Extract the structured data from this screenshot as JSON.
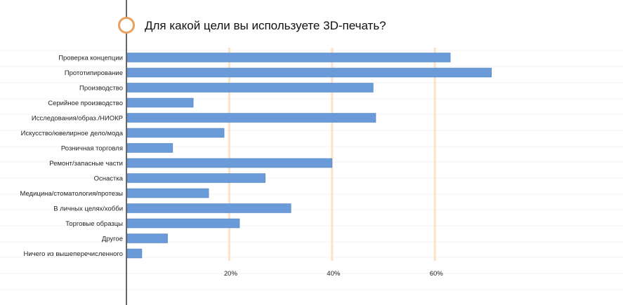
{
  "chart_data": {
    "type": "bar",
    "orientation": "horizontal",
    "title": "Для какой цели вы используете 3D-печать?",
    "categories": [
      "Проверка концепции",
      "Прототипирование",
      "Производство",
      "Серийное производство",
      "Исследования/образ./НИОКР",
      "Искусство/ювелирное дело/мода",
      "Розничная торговля",
      "Ремонт/запасные части",
      "Оснастка",
      "Медицина/стоматология/протезы",
      "В личных целях/хобби",
      "Торговые образцы",
      "Другое",
      "Ничего из вышеперечисленного"
    ],
    "values": [
      63,
      71,
      48,
      13,
      48.5,
      19,
      9,
      40,
      27,
      16,
      32,
      22,
      8,
      3
    ],
    "xlim": [
      0,
      80
    ],
    "xticks": [
      20,
      40,
      60
    ],
    "xtick_labels": [
      "20%",
      "40%",
      "60%"
    ],
    "xlabel": "",
    "ylabel": "",
    "grid": true,
    "legend": "none",
    "colors": {
      "bar": "#6a9bd8",
      "bar_edge": "#4a7fc1",
      "gridline": "#fbe3c8",
      "axis": "#666666",
      "title_marker": "#e8a060"
    }
  }
}
